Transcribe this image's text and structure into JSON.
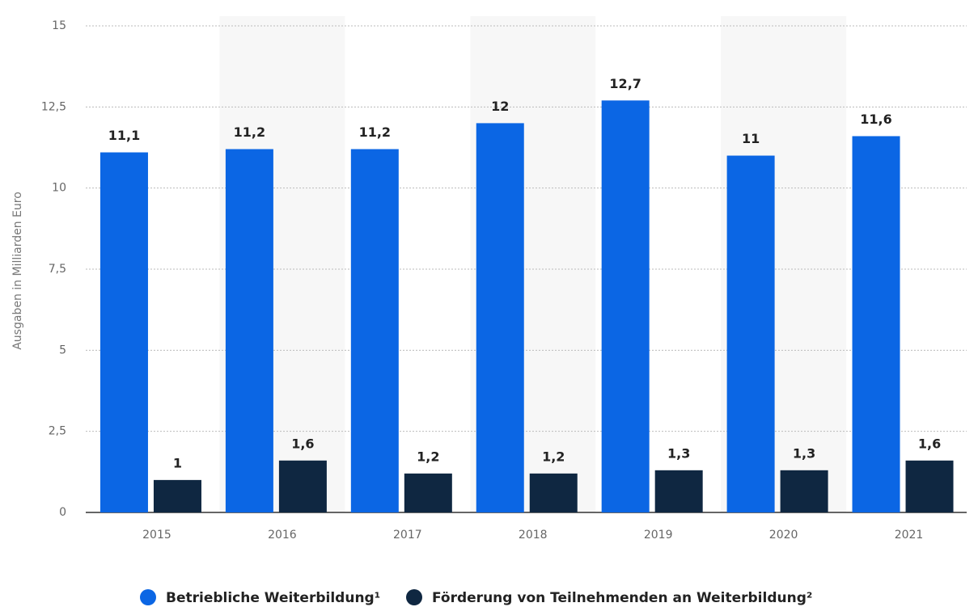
{
  "chart_data": {
    "type": "bar",
    "y_label": "Ausgaben in Milliarden Euro",
    "categories": [
      "2015",
      "2016",
      "2017",
      "2018",
      "2019",
      "2020",
      "2021"
    ],
    "series": [
      {
        "name": "Betriebliche Weiterbildung¹",
        "color": "#0b66e4",
        "values": [
          11.1,
          11.2,
          11.2,
          12,
          12.7,
          11,
          11.6
        ],
        "value_labels": [
          "11,1",
          "11,2",
          "11,2",
          "12",
          "12,7",
          "11",
          "11,6"
        ]
      },
      {
        "name": "Förderung von Teilnehmenden an Weiterbildung²",
        "color": "#0f2741",
        "values": [
          1,
          1.6,
          1.2,
          1.2,
          1.3,
          1.3,
          1.6
        ],
        "value_labels": [
          "1",
          "1,6",
          "1,2",
          "1,2",
          "1,3",
          "1,3",
          "1,6"
        ]
      }
    ],
    "ylim": [
      0,
      15
    ],
    "yticks": [
      0,
      {
        "value": 2.5,
        "label": "2,5"
      },
      5,
      {
        "value": 7.5,
        "label": "7,5"
      },
      10,
      {
        "value": 12.5,
        "label": "12,5"
      },
      15
    ],
    "grid": true
  }
}
